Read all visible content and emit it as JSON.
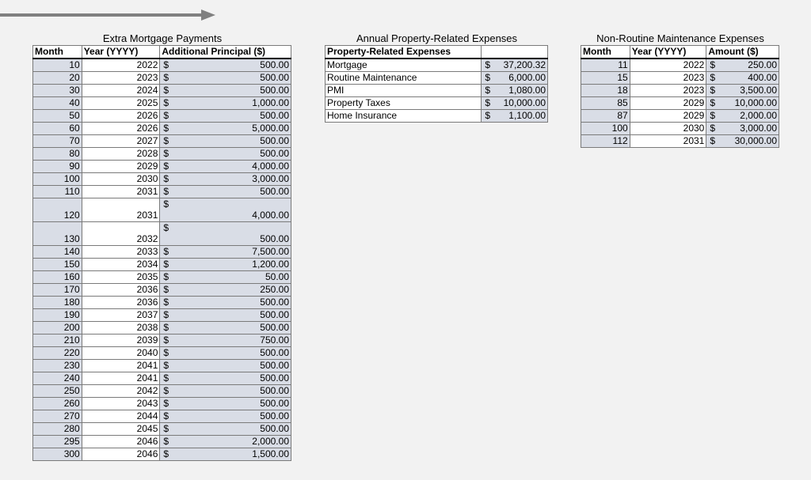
{
  "extra": {
    "caption": "Extra Mortgage Payments",
    "headers": [
      "Month",
      "Year (YYYY)",
      "Additional Principal ($)"
    ],
    "currency_symbol": "$",
    "rows": [
      {
        "month": "10",
        "year": "2022",
        "amount": "500.00"
      },
      {
        "month": "20",
        "year": "2023",
        "amount": "500.00"
      },
      {
        "month": "30",
        "year": "2024",
        "amount": "500.00"
      },
      {
        "month": "40",
        "year": "2025",
        "amount": "1,000.00"
      },
      {
        "month": "50",
        "year": "2026",
        "amount": "500.00"
      },
      {
        "month": "60",
        "year": "2026",
        "amount": "5,000.00"
      },
      {
        "month": "70",
        "year": "2027",
        "amount": "500.00"
      },
      {
        "month": "80",
        "year": "2028",
        "amount": "500.00"
      },
      {
        "month": "90",
        "year": "2029",
        "amount": "4,000.00"
      },
      {
        "month": "100",
        "year": "2030",
        "amount": "3,000.00"
      },
      {
        "month": "110",
        "year": "2031",
        "amount": "500.00"
      },
      {
        "month": "120",
        "year": "2031",
        "amount": "4,000.00"
      },
      {
        "month": "130",
        "year": "2032",
        "amount": "500.00"
      },
      {
        "month": "140",
        "year": "2033",
        "amount": "7,500.00"
      },
      {
        "month": "150",
        "year": "2034",
        "amount": "1,200.00"
      },
      {
        "month": "160",
        "year": "2035",
        "amount": "50.00"
      },
      {
        "month": "170",
        "year": "2036",
        "amount": "250.00"
      },
      {
        "month": "180",
        "year": "2036",
        "amount": "500.00"
      },
      {
        "month": "190",
        "year": "2037",
        "amount": "500.00"
      },
      {
        "month": "200",
        "year": "2038",
        "amount": "500.00"
      },
      {
        "month": "210",
        "year": "2039",
        "amount": "750.00"
      },
      {
        "month": "220",
        "year": "2040",
        "amount": "500.00"
      },
      {
        "month": "230",
        "year": "2041",
        "amount": "500.00"
      },
      {
        "month": "240",
        "year": "2041",
        "amount": "500.00"
      },
      {
        "month": "250",
        "year": "2042",
        "amount": "500.00"
      },
      {
        "month": "260",
        "year": "2043",
        "amount": "500.00"
      },
      {
        "month": "270",
        "year": "2044",
        "amount": "500.00"
      },
      {
        "month": "280",
        "year": "2045",
        "amount": "500.00"
      },
      {
        "month": "295",
        "year": "2046",
        "amount": "2,000.00"
      },
      {
        "month": "300",
        "year": "2046",
        "amount": "1,500.00"
      }
    ]
  },
  "annual": {
    "caption": "Annual Property-Related Expenses",
    "header": "Property-Related Expenses",
    "currency_symbol": "$",
    "rows": [
      {
        "label": "Mortgage",
        "amount": "37,200.32"
      },
      {
        "label": "Routine Maintenance",
        "amount": "6,000.00"
      },
      {
        "label": "PMI",
        "amount": "1,080.00"
      },
      {
        "label": "Property Taxes",
        "amount": "10,000.00"
      },
      {
        "label": "Home Insurance",
        "amount": "1,100.00"
      }
    ]
  },
  "nonroutine": {
    "caption": "Non-Routine Maintenance Expenses",
    "headers": [
      "Month",
      "Year (YYYY)",
      "Amount ($)"
    ],
    "currency_symbol": "$",
    "rows": [
      {
        "month": "11",
        "year": "2022",
        "amount": "250.00"
      },
      {
        "month": "15",
        "year": "2023",
        "amount": "400.00"
      },
      {
        "month": "18",
        "year": "2023",
        "amount": "3,500.00"
      },
      {
        "month": "85",
        "year": "2029",
        "amount": "10,000.00"
      },
      {
        "month": "87",
        "year": "2029",
        "amount": "2,000.00"
      },
      {
        "month": "100",
        "year": "2030",
        "amount": "3,000.00"
      },
      {
        "month": "112",
        "year": "2031",
        "amount": "30,000.00"
      }
    ]
  },
  "colors": {
    "shade": "#d9dde6",
    "arrow": "#808080"
  },
  "icons": {
    "arrow": "right-arrow-icon"
  }
}
